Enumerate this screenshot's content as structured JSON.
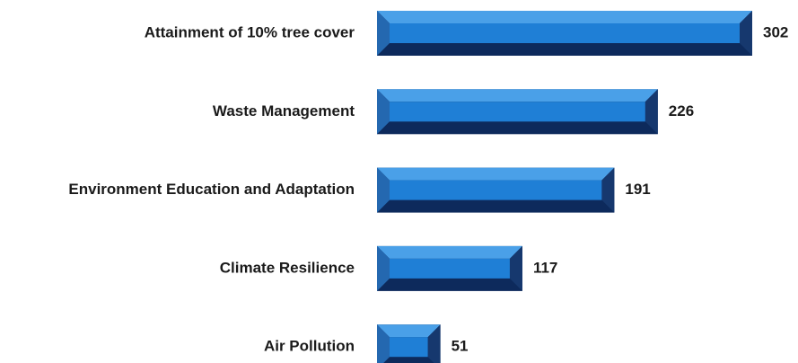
{
  "chart_data": {
    "type": "bar",
    "orientation": "horizontal",
    "categories": [
      "Attainment of 10% tree cover",
      "Waste Management",
      "Environment Education and Adaptation",
      "Climate Resilience",
      "Air Pollution"
    ],
    "values": [
      302,
      226,
      191,
      117,
      51
    ],
    "color": "#1f7fd6"
  }
}
